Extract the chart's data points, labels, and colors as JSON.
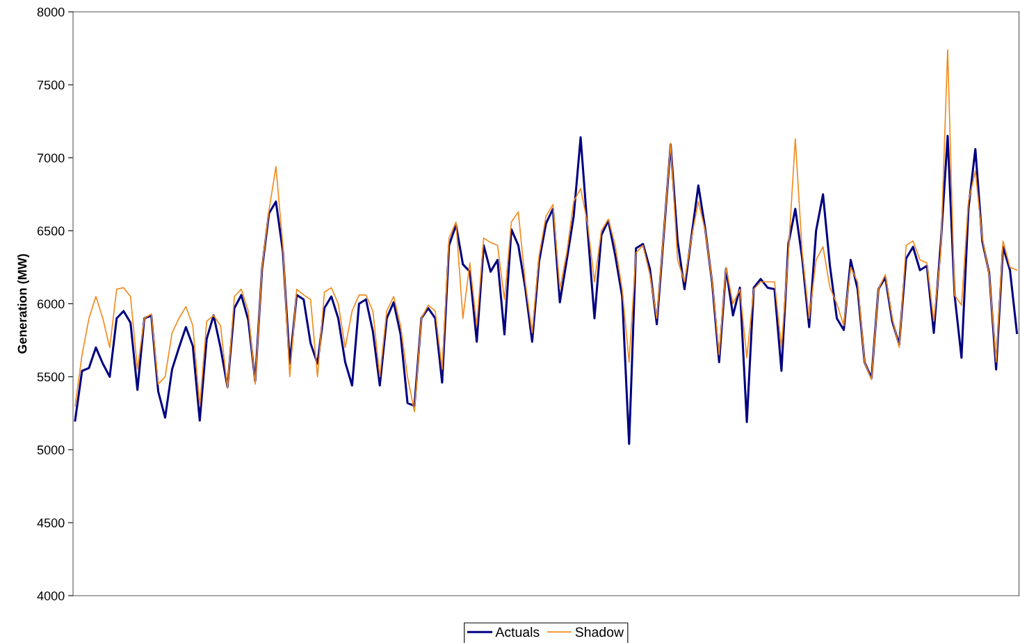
{
  "chart_data": {
    "type": "line",
    "ylabel": "Generation (MW)",
    "categories": [
      null,
      null,
      null,
      null,
      null,
      null,
      null,
      null,
      null,
      null,
      null,
      null,
      null,
      null,
      null,
      null,
      null,
      null,
      null,
      null,
      null,
      null,
      null,
      null,
      null,
      null,
      null,
      null,
      null,
      null,
      null,
      null,
      null,
      null,
      null,
      null,
      null,
      null,
      null,
      null,
      null,
      null,
      null,
      null,
      null,
      null,
      null,
      null,
      null,
      null,
      null,
      null,
      null,
      null,
      null,
      null,
      null,
      null,
      null,
      null,
      null,
      null,
      null,
      null,
      null,
      null,
      null,
      null,
      null,
      null,
      null,
      null,
      null,
      null,
      null,
      null,
      null,
      null,
      null,
      null,
      null,
      null,
      null,
      null,
      null,
      null,
      null,
      null,
      null,
      null,
      null,
      null,
      null,
      null,
      null,
      null,
      null,
      null,
      null,
      null,
      null,
      null,
      null,
      null,
      null,
      null,
      null,
      null,
      null,
      null,
      null,
      null,
      null,
      null,
      null,
      null,
      null,
      null,
      null,
      null,
      null,
      null,
      null,
      null,
      null,
      null,
      null,
      null,
      null,
      null,
      null,
      null,
      null,
      null,
      null,
      null,
      null
    ],
    "series": [
      {
        "name": "Actuals",
        "color": "#000080",
        "values": [
          5200,
          5540,
          5560,
          5700,
          5590,
          5500,
          5900,
          5950,
          5870,
          5410,
          5900,
          5920,
          5400,
          5220,
          5550,
          5700,
          5840,
          5710,
          5200,
          5760,
          5920,
          5700,
          5430,
          5970,
          6060,
          5890,
          5470,
          6240,
          6620,
          6700,
          6360,
          5590,
          6060,
          6030,
          5730,
          5590,
          5970,
          6050,
          5900,
          5600,
          5440,
          6000,
          6030,
          5810,
          5440,
          5900,
          6010,
          5790,
          5320,
          5300,
          5900,
          5970,
          5900,
          5460,
          6400,
          6540,
          6270,
          6220,
          5740,
          6400,
          6220,
          6300,
          5790,
          6510,
          6400,
          6110,
          5740,
          6290,
          6550,
          6650,
          6010,
          6300,
          6600,
          7140,
          6510,
          5900,
          6470,
          6570,
          6330,
          6050,
          5040,
          6380,
          6410,
          6240,
          5860,
          6470,
          7090,
          6430,
          6100,
          6460,
          6810,
          6510,
          6140,
          5600,
          6240,
          5920,
          6110,
          5190,
          6110,
          6170,
          6110,
          6100,
          5540,
          6410,
          6650,
          6310,
          5840,
          6500,
          6750,
          6260,
          5900,
          5820,
          6300,
          6100,
          5600,
          5490,
          6100,
          6180,
          5880,
          5720,
          6310,
          6390,
          6230,
          6260,
          5800,
          6410,
          7150,
          6060,
          5630,
          6650,
          7060,
          6430,
          6210,
          5550,
          6390,
          6230,
          5800
        ]
      },
      {
        "name": "Shadow",
        "color": "#f08a1c",
        "values": [
          5300,
          5650,
          5900,
          6050,
          5900,
          5700,
          6100,
          6110,
          6050,
          5550,
          5900,
          5930,
          5450,
          5500,
          5800,
          5900,
          5980,
          5850,
          5300,
          5880,
          5920,
          5850,
          5420,
          6050,
          6100,
          5950,
          5450,
          6250,
          6640,
          6940,
          6400,
          5500,
          6100,
          6060,
          6030,
          5500,
          6080,
          6110,
          6000,
          5700,
          5950,
          6060,
          6060,
          5950,
          5500,
          5950,
          6050,
          5850,
          5500,
          5260,
          5900,
          5990,
          5950,
          5550,
          6450,
          6560,
          5900,
          6280,
          5850,
          6450,
          6420,
          6400,
          6030,
          6560,
          6630,
          6150,
          5800,
          6330,
          6600,
          6680,
          6100,
          6350,
          6700,
          6790,
          6550,
          6150,
          6500,
          6580,
          6400,
          6100,
          5600,
          6350,
          6400,
          6200,
          5900,
          6480,
          7100,
          6300,
          6150,
          6450,
          6700,
          6500,
          6150,
          5650,
          6250,
          6000,
          6100,
          5630,
          6100,
          6150,
          6150,
          6150,
          5700,
          6350,
          7130,
          6350,
          5900,
          6300,
          6390,
          6110,
          6000,
          5850,
          6250,
          6150,
          5600,
          5480,
          6100,
          6200,
          5900,
          5700,
          6400,
          6430,
          6300,
          6280,
          5880,
          6350,
          7740,
          6060,
          5990,
          6700,
          6910,
          6450,
          6200,
          5600,
          6430,
          6250,
          6230
        ]
      }
    ],
    "ylim": [
      4000,
      8000
    ],
    "yticks": [
      4000,
      4500,
      5000,
      5500,
      6000,
      6500,
      7000,
      7500,
      8000
    ],
    "grid": false,
    "legend": "bottom",
    "marker": "none",
    "line_style": "solid"
  }
}
